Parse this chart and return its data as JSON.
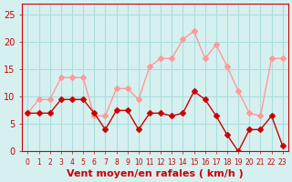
{
  "x": [
    0,
    1,
    2,
    3,
    4,
    5,
    6,
    7,
    8,
    9,
    10,
    11,
    12,
    13,
    14,
    15,
    16,
    17,
    18,
    19,
    20,
    21,
    22,
    23
  ],
  "wind_avg": [
    7,
    7,
    7,
    9.5,
    9.5,
    9.5,
    7,
    4,
    7.5,
    7.5,
    4,
    7,
    7,
    6.5,
    7,
    11,
    9.5,
    6.5,
    3,
    0,
    4,
    4,
    6.5,
    1
  ],
  "wind_gust": [
    7,
    9.5,
    9.5,
    13.5,
    13.5,
    13.5,
    6.5,
    6.5,
    11.5,
    11.5,
    9.5,
    15.5,
    17,
    17,
    20.5,
    22,
    17,
    19.5,
    15.5,
    11,
    7,
    6.5,
    17,
    17
  ],
  "bg_color": "#d6f0f0",
  "grid_color": "#aadddd",
  "line_avg_color": "#cc0000",
  "line_gust_color": "#ff9999",
  "marker_avg_color": "#cc0000",
  "marker_gust_color": "#ff9999",
  "xlabel": "Vent moyen/en rafales ( km/h )",
  "ylim": [
    0,
    27
  ],
  "yticks": [
    0,
    5,
    10,
    15,
    20,
    25
  ],
  "xticks": [
    0,
    1,
    2,
    3,
    4,
    5,
    6,
    7,
    8,
    9,
    10,
    11,
    12,
    13,
    14,
    15,
    16,
    17,
    18,
    19,
    20,
    21,
    22,
    23
  ],
  "tick_color": "#cc0000",
  "label_fontsize": 7,
  "xlabel_fontsize": 8
}
